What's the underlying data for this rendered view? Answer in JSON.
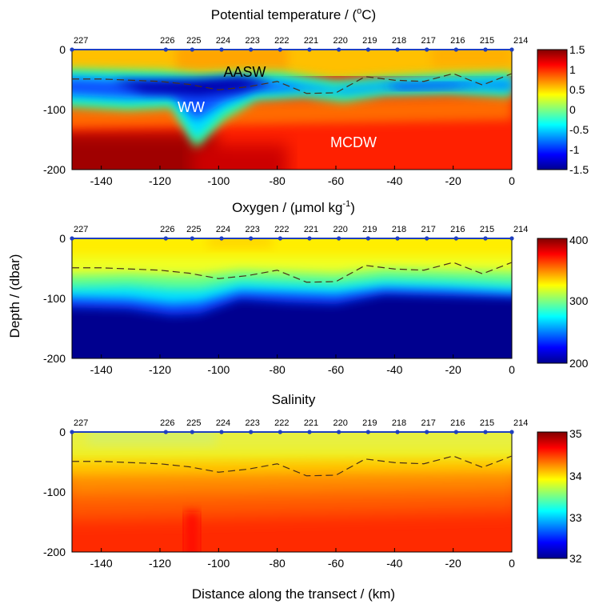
{
  "figure": {
    "xlabel": "Distance along the transect / (km)",
    "ylabel": "Depth / (dbar)"
  },
  "chart_data": [
    {
      "type": "heatmap",
      "title": "Potential temperature / (°C)",
      "xlabel": "Distance along the transect / (km)",
      "ylabel": "Depth / (dbar)",
      "xlim": [
        -150,
        0
      ],
      "ylim": [
        200,
        0
      ],
      "xticks": [
        -140,
        -120,
        -100,
        -80,
        -60,
        -40,
        -20,
        0
      ],
      "yticks": [
        0,
        -100,
        -200
      ],
      "colorbar": {
        "min": -1.5,
        "max": 1.5,
        "ticks": [
          "1.5",
          "1",
          "0.5",
          "0",
          "-0.5",
          "-1",
          "-1.5"
        ]
      },
      "stations": [
        {
          "label": "227",
          "x": -150
        },
        {
          "label": "226",
          "x": -118
        },
        {
          "label": "225",
          "x": -109
        },
        {
          "label": "224",
          "x": -99
        },
        {
          "label": "223",
          "x": -89
        },
        {
          "label": "222",
          "x": -79
        },
        {
          "label": "221",
          "x": -69
        },
        {
          "label": "220",
          "x": -59
        },
        {
          "label": "219",
          "x": -49
        },
        {
          "label": "218",
          "x": -39
        },
        {
          "label": "217",
          "x": -29
        },
        {
          "label": "216",
          "x": -19
        },
        {
          "label": "215",
          "x": -9
        },
        {
          "label": "214",
          "x": 0
        }
      ],
      "dashed_line": {
        "x": [
          -150,
          -140,
          -120,
          -110,
          -100,
          -90,
          -80,
          -70,
          -60,
          -50,
          -40,
          -30,
          -20,
          -10,
          0
        ],
        "depth": [
          49,
          49,
          53,
          58,
          67,
          62,
          53,
          73,
          72,
          45,
          51,
          53,
          40,
          59,
          40
        ]
      },
      "annotations": [
        {
          "text": "AASW",
          "x": -93,
          "depth": 38,
          "color": "#000000"
        },
        {
          "text": "WW",
          "x": -103,
          "depth": 95,
          "color": "#ffffff"
        },
        {
          "text": "MCDW",
          "x": -45,
          "depth": 155,
          "color": "#ffffff"
        }
      ]
    },
    {
      "type": "heatmap",
      "title": "Oxygen / (μmol kg-1)",
      "xlabel": "",
      "ylabel": "Depth / (dbar)",
      "xlim": [
        -150,
        0
      ],
      "ylim": [
        200,
        0
      ],
      "xticks": [
        -140,
        -120,
        -100,
        -80,
        -60,
        -40,
        -20,
        0
      ],
      "yticks": [
        0,
        -100,
        -200
      ],
      "colorbar": {
        "min": 200,
        "max": 400,
        "ticks": [
          "400",
          "300",
          "200"
        ]
      },
      "stations": "same as potential temperature",
      "dashed_line": "same as potential temperature"
    },
    {
      "type": "heatmap",
      "title": "Salinity",
      "xlabel": "Distance along the transect / (km)",
      "ylabel": "Depth / (dbar)",
      "xlim": [
        -150,
        0
      ],
      "ylim": [
        200,
        0
      ],
      "xticks": [
        -140,
        -120,
        -100,
        -80,
        -60,
        -40,
        -20,
        0
      ],
      "yticks": [
        0,
        -100,
        -200
      ],
      "colorbar": {
        "min": 32,
        "max": 35,
        "ticks": [
          "35",
          "34",
          "33",
          "32"
        ]
      },
      "stations": "same as potential temperature",
      "dashed_line": "same as potential temperature"
    }
  ],
  "panels": [
    {
      "key": "temp",
      "title": "Potential temperature / (",
      "title_unit": "o",
      "title_tail": "C)",
      "xticks": [
        "-140",
        "-120",
        "-100",
        "-80",
        "-60",
        "-40",
        "-20",
        "0"
      ],
      "yticks": [
        "0",
        "-100",
        "-200"
      ],
      "cbar_ticks": [
        "1.5",
        "1",
        "0.5",
        "0",
        "-0.5",
        "-1",
        "-1.5"
      ],
      "labels": [
        "AASW",
        "WW",
        "MCDW"
      ]
    },
    {
      "key": "oxy",
      "title": "Oxygen / (",
      "title_unit": "μmol kg",
      "title_sup": "-1",
      "title_tail": ")",
      "xticks": [
        "-140",
        "-120",
        "-100",
        "-80",
        "-60",
        "-40",
        "-20",
        "0"
      ],
      "yticks": [
        "0",
        "-100",
        "-200"
      ],
      "cbar_ticks": [
        "400",
        "300",
        "200"
      ]
    },
    {
      "key": "sal",
      "title": "Salinity",
      "xticks": [
        "-140",
        "-120",
        "-100",
        "-80",
        "-60",
        "-40",
        "-20",
        "0"
      ],
      "yticks": [
        "0",
        "-100",
        "-200"
      ],
      "cbar_ticks": [
        "35",
        "34",
        "33",
        "32"
      ]
    }
  ],
  "station_labels": [
    "227",
    "226",
    "225",
    "224",
    "223",
    "222",
    "221",
    "220",
    "219",
    "218",
    "217",
    "216",
    "215",
    "214"
  ],
  "colors": {
    "station_marker": "#1f3fbf",
    "dashed_line": "#4a3018",
    "jet": [
      "#00008f",
      "#0000ff",
      "#00ffff",
      "#ffff00",
      "#ff0000",
      "#800000"
    ]
  }
}
